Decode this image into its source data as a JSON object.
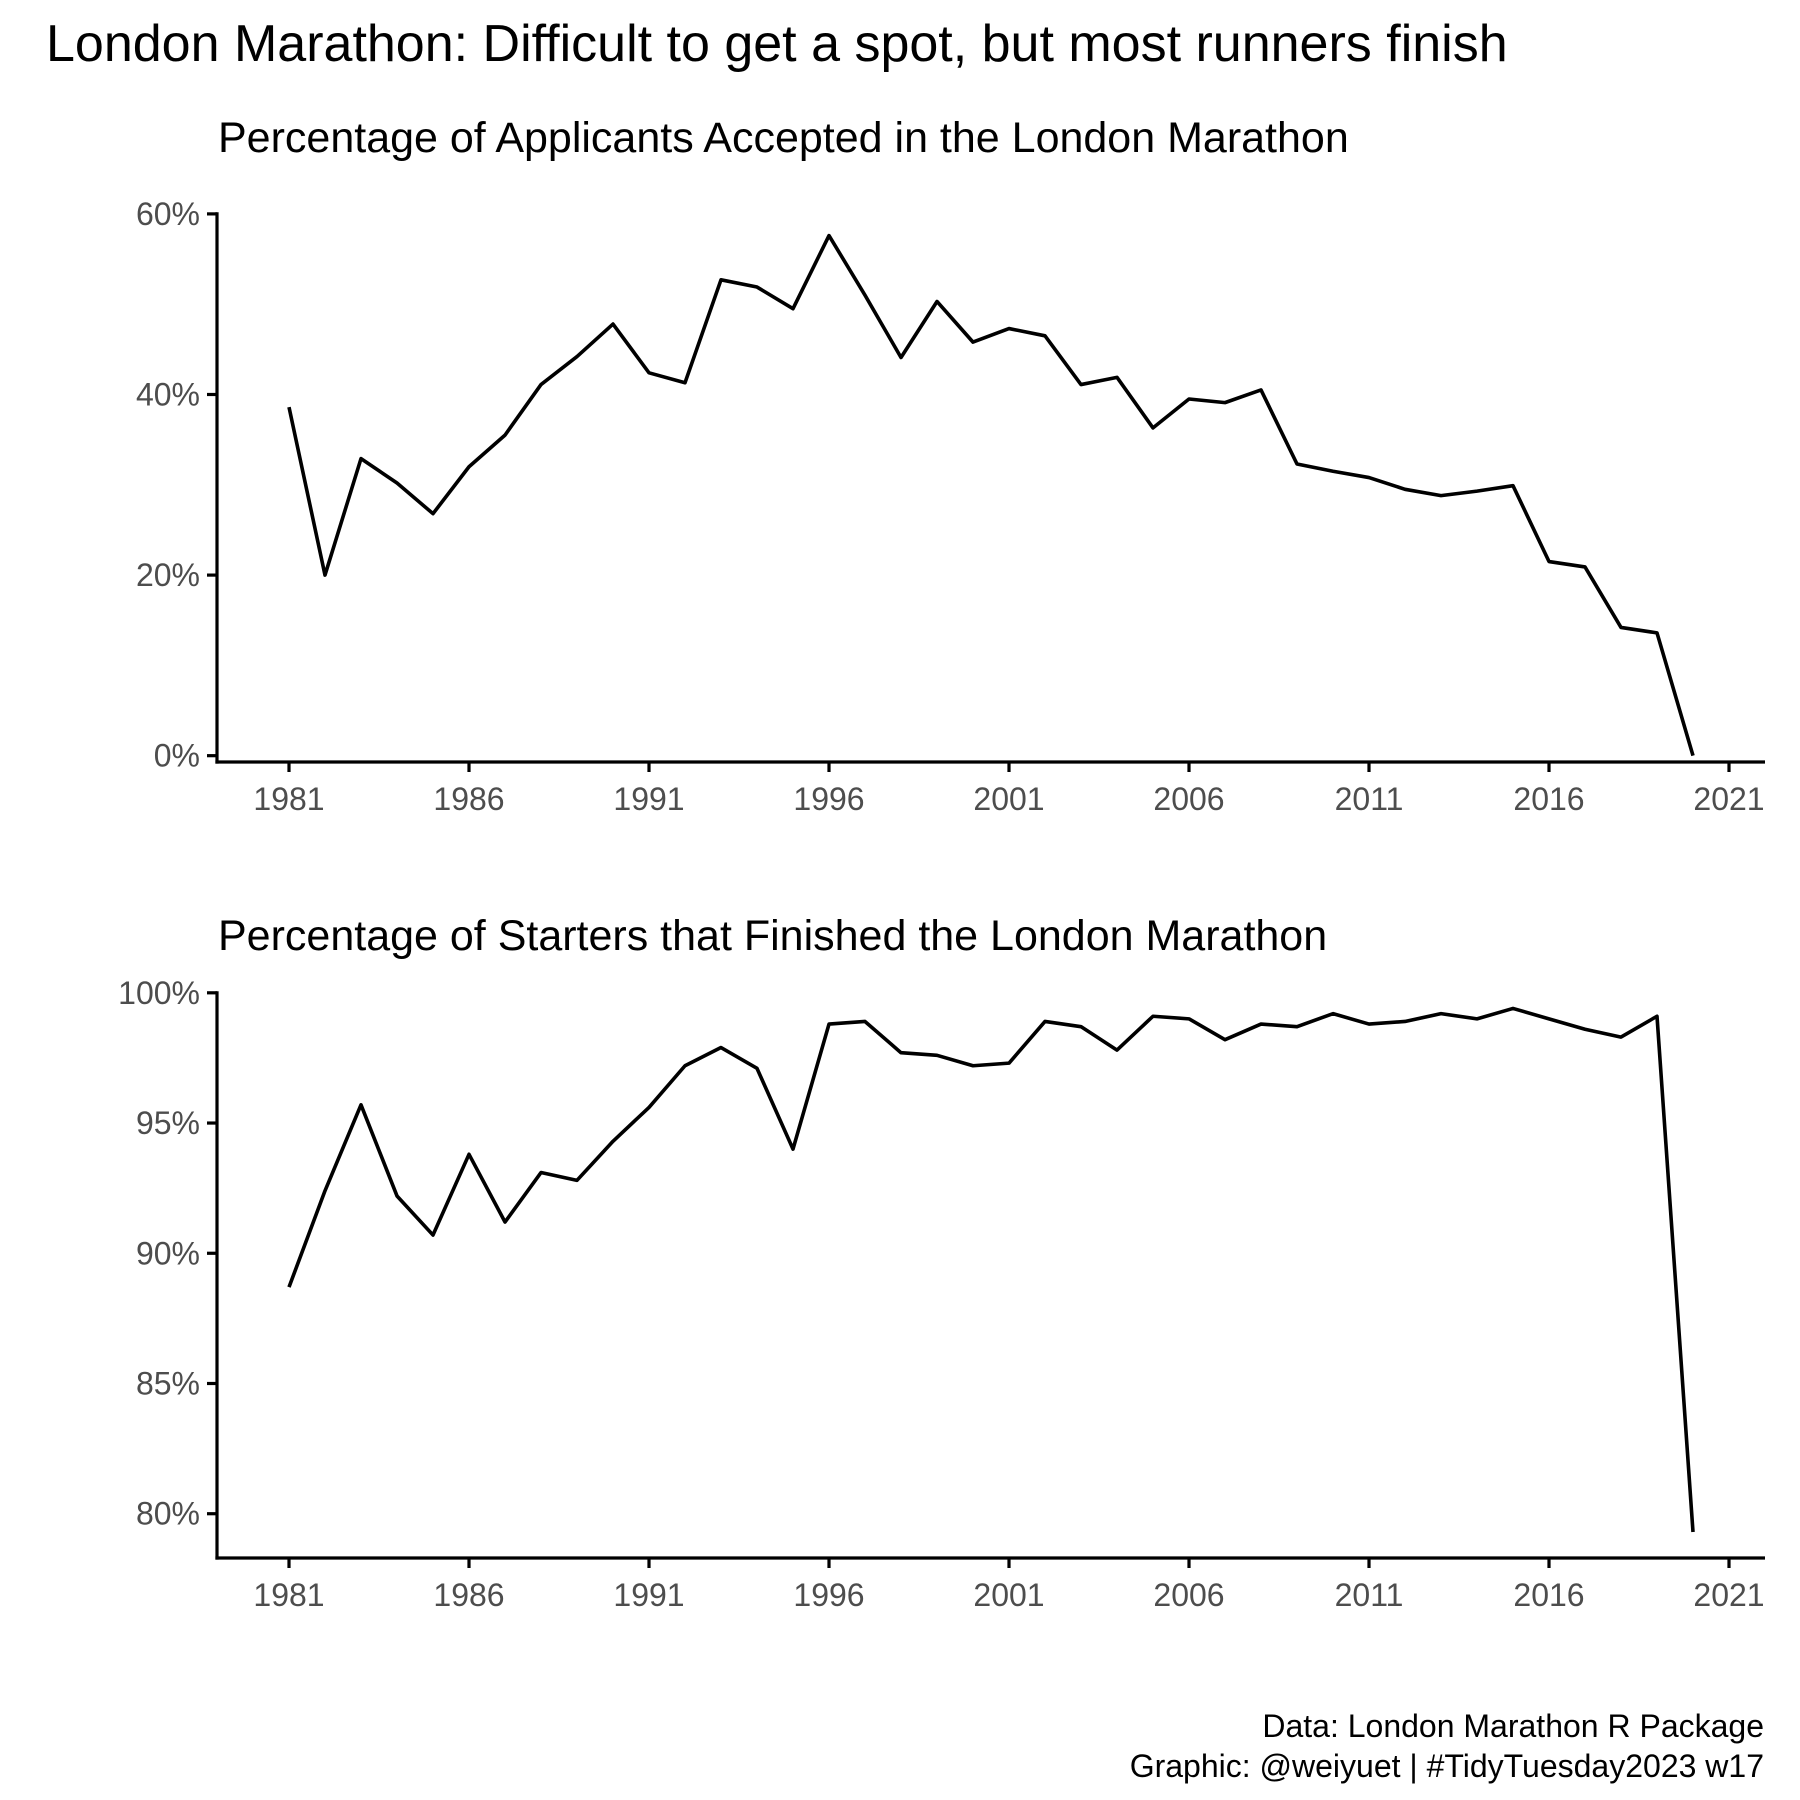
{
  "title": "London Marathon: Difficult to get a spot, but most runners finish",
  "caption": {
    "line1": "Data: London Marathon R Package",
    "line2": "Graphic: @weiyuet | #TidyTuesday2023 w17"
  },
  "chart_data": [
    {
      "type": "line",
      "title": "Percentage of Applicants Accepted in the London Marathon",
      "xlabel": "",
      "ylabel": "",
      "xlim": [
        1979,
        2022
      ],
      "ylim": [
        -0.7,
        63.2
      ],
      "x_ticks": [
        1981,
        1986,
        1991,
        1996,
        2001,
        2006,
        2011,
        2016,
        2021
      ],
      "y_ticks": [
        0,
        20,
        40,
        60
      ],
      "y_tick_labels": [
        "0%",
        "20%",
        "40%",
        "60%"
      ],
      "grid": false,
      "legend": "none",
      "series": [
        {
          "color": "#000000",
          "x": [
            1981,
            1982,
            1983,
            1984,
            1985,
            1986,
            1987,
            1988,
            1989,
            1990,
            1991,
            1992,
            1993,
            1994,
            1995,
            1996,
            1997,
            1998,
            1999,
            2000,
            2001,
            2002,
            2003,
            2004,
            2005,
            2006,
            2007,
            2008,
            2009,
            2010,
            2011,
            2012,
            2013,
            2014,
            2015,
            2016,
            2017,
            2018,
            2019,
            2020
          ],
          "y": [
            38.6,
            20.0,
            32.9,
            30.2,
            26.8,
            32.0,
            35.5,
            41.1,
            44.2,
            47.8,
            42.4,
            41.3,
            52.7,
            51.9,
            49.5,
            57.6,
            51.0,
            44.1,
            50.3,
            45.8,
            47.3,
            46.5,
            41.1,
            41.9,
            36.3,
            39.5,
            39.1,
            40.5,
            32.3,
            31.5,
            30.8,
            29.5,
            28.8,
            29.3,
            29.9,
            21.5,
            20.9,
            14.2,
            13.6,
            0.0
          ]
        }
      ]
    },
    {
      "type": "line",
      "title": "Percentage of Starters that Finished the London Marathon",
      "xlabel": "",
      "ylabel": "",
      "xlim": [
        1979,
        2022
      ],
      "ylim": [
        78.3,
        100.3
      ],
      "x_ticks": [
        1981,
        1986,
        1991,
        1996,
        2001,
        2006,
        2011,
        2016,
        2021
      ],
      "y_ticks": [
        80,
        85,
        90,
        95,
        100
      ],
      "y_tick_labels": [
        "80%",
        "85%",
        "90%",
        "95%",
        "100%"
      ],
      "grid": false,
      "legend": "none",
      "series": [
        {
          "color": "#000000",
          "x": [
            1981,
            1982,
            1983,
            1984,
            1985,
            1986,
            1987,
            1988,
            1989,
            1990,
            1991,
            1992,
            1993,
            1994,
            1995,
            1996,
            1997,
            1998,
            1999,
            2000,
            2001,
            2002,
            2003,
            2004,
            2005,
            2006,
            2007,
            2008,
            2009,
            2010,
            2011,
            2012,
            2013,
            2014,
            2015,
            2016,
            2017,
            2018,
            2019,
            2020
          ],
          "y": [
            88.7,
            92.4,
            95.7,
            92.2,
            90.7,
            93.8,
            91.2,
            93.1,
            92.8,
            94.3,
            95.6,
            97.2,
            97.9,
            97.1,
            94.0,
            98.8,
            98.9,
            97.7,
            97.6,
            97.2,
            97.3,
            98.9,
            98.7,
            97.8,
            99.1,
            99.0,
            98.2,
            98.8,
            98.7,
            99.2,
            98.8,
            98.9,
            99.2,
            99.0,
            99.4,
            99.0,
            98.6,
            98.3,
            99.1,
            79.3
          ]
        }
      ]
    }
  ]
}
